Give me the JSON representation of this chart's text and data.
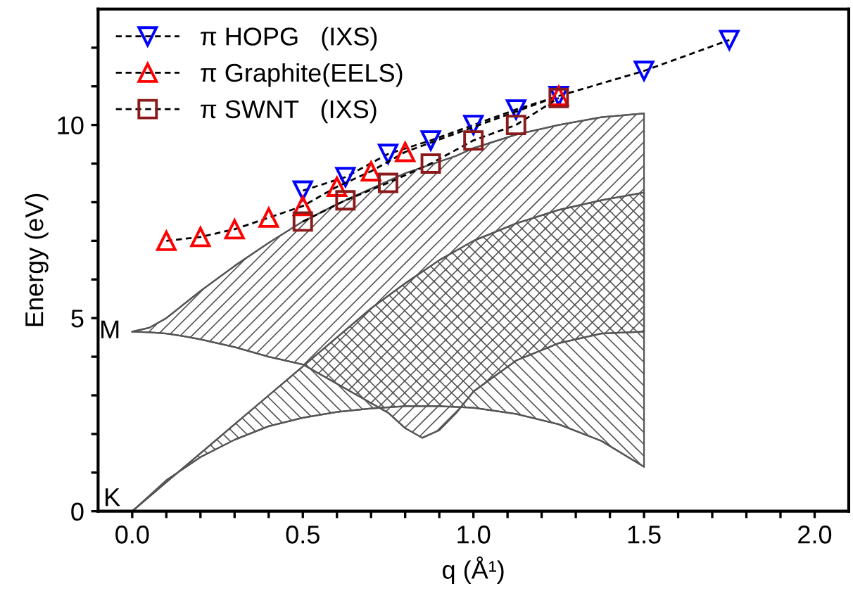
{
  "chart_data": {
    "type": "line",
    "xlabel": "q (Å¹)",
    "ylabel": "Energy (eV)",
    "xlim": [
      -0.1,
      2.1
    ],
    "ylim": [
      0,
      13
    ],
    "xticks": [
      {
        "value": 0,
        "label": "0.0"
      },
      {
        "value": 0.1,
        "label": null
      },
      {
        "value": 0.2,
        "label": null
      },
      {
        "value": 0.3,
        "label": null
      },
      {
        "value": 0.4,
        "label": null
      },
      {
        "value": 0.5,
        "label": "0.5"
      },
      {
        "value": 0.6,
        "label": null
      },
      {
        "value": 0.7,
        "label": null
      },
      {
        "value": 0.8,
        "label": null
      },
      {
        "value": 0.9,
        "label": null
      },
      {
        "value": 1,
        "label": "1.0"
      },
      {
        "value": 1.1,
        "label": null
      },
      {
        "value": 1.2,
        "label": null
      },
      {
        "value": 1.3,
        "label": null
      },
      {
        "value": 1.4,
        "label": null
      },
      {
        "value": 1.5,
        "label": "1.5"
      },
      {
        "value": 1.6,
        "label": null
      },
      {
        "value": 1.7,
        "label": null
      },
      {
        "value": 1.8,
        "label": null
      },
      {
        "value": 1.9,
        "label": null
      },
      {
        "value": 2,
        "label": "2.0"
      }
    ],
    "yticks": [
      0,
      {
        "value": 1,
        "label": null
      },
      {
        "value": 2,
        "label": null
      },
      {
        "value": 3,
        "label": null
      },
      {
        "value": 4,
        "label": null
      },
      5,
      {
        "value": 6,
        "label": null
      },
      {
        "value": 7,
        "label": null
      },
      {
        "value": 8,
        "label": null
      },
      {
        "value": 9,
        "label": null
      },
      10,
      {
        "value": 11,
        "label": null
      },
      {
        "value": 12,
        "label": null
      }
    ],
    "grid": false,
    "legend": "top left",
    "line_style": "dashed",
    "annotations": [
      {
        "text": "M",
        "x": 0,
        "y": 4.65
      },
      {
        "text": "K",
        "x": 0,
        "y": 0
      }
    ],
    "series": [
      {
        "color": "#555555",
        "line_style": "solid",
        "marker": "none",
        "x": [
          0,
          0.05,
          0.1,
          0.15,
          0.2,
          0.3,
          0.4,
          0.5,
          0.6,
          0.7,
          0.75,
          0.8,
          0.85,
          0.9,
          0.95,
          1.0,
          1.125,
          1.25,
          1.375,
          1.5
        ],
        "values": [
          4.65,
          4.75,
          5.0,
          5.35,
          5.7,
          6.35,
          6.95,
          7.5,
          7.95,
          8.35,
          8.55,
          8.75,
          8.9,
          9.05,
          9.2,
          9.4,
          9.75,
          10.0,
          10.2,
          10.3
        ]
      },
      {
        "color": "#555555",
        "line_style": "solid",
        "marker": "none",
        "x": [
          0,
          0.05,
          0.1,
          0.15,
          0.2,
          0.3,
          0.4,
          0.5,
          0.6,
          0.7,
          0.75,
          0.8,
          0.85,
          0.9,
          0.95,
          1.0,
          1.125,
          1.25,
          1.375,
          1.5
        ],
        "values": [
          4.65,
          4.63,
          4.6,
          4.53,
          4.45,
          4.25,
          4.0,
          3.8,
          3.3,
          2.8,
          2.55,
          2.15,
          1.9,
          2.1,
          2.55,
          3.1,
          3.9,
          4.35,
          4.6,
          4.65
        ]
      },
      {
        "color": "#555555",
        "line_style": "solid",
        "marker": "none",
        "x": [
          0,
          0.1,
          0.2,
          0.3,
          0.4,
          0.5,
          0.6,
          0.7,
          0.8,
          0.9,
          1.0,
          1.125,
          1.25,
          1.375,
          1.5
        ],
        "values": [
          0,
          0.75,
          1.5,
          2.25,
          3.0,
          3.75,
          4.5,
          5.25,
          5.9,
          6.5,
          7.0,
          7.45,
          7.8,
          8.05,
          8.25
        ]
      },
      {
        "color": "#555555",
        "line_style": "solid",
        "marker": "none",
        "x": [
          0,
          0.1,
          0.2,
          0.3,
          0.4,
          0.5,
          0.6,
          0.7,
          0.8,
          0.9,
          1.0,
          1.125,
          1.25,
          1.375,
          1.5
        ],
        "values": [
          0,
          0.8,
          1.4,
          1.85,
          2.2,
          2.42,
          2.57,
          2.66,
          2.72,
          2.72,
          2.68,
          2.52,
          2.25,
          1.82,
          1.15
        ]
      },
      {
        "name": "π HOPG   (IXS)",
        "color": "#0000ff",
        "marker": "triangle_down",
        "x": [
          0.5,
          0.625,
          0.75,
          0.875,
          1.0,
          1.125,
          1.25,
          1.5,
          1.75
        ],
        "values": [
          8.3,
          8.65,
          9.25,
          9.6,
          10.0,
          10.4,
          10.75,
          11.4,
          12.2
        ]
      },
      {
        "name": "π Graphite(EELS)",
        "color": "#ff0000",
        "marker": "triangle",
        "x": [
          0.1,
          0.2,
          0.3,
          0.4,
          0.5,
          0.6,
          0.7,
          0.8,
          1.25
        ],
        "values": [
          7.0,
          7.1,
          7.3,
          7.6,
          7.9,
          8.4,
          8.8,
          9.3,
          10.75
        ]
      },
      {
        "name": "π SWNT   (IXS)",
        "color": "#8b1a1a",
        "marker": "square",
        "x": [
          0.5,
          0.625,
          0.75,
          0.875,
          1.0,
          1.125,
          1.25
        ],
        "values": [
          7.5,
          8.05,
          8.5,
          9.0,
          9.6,
          10.0,
          10.7
        ]
      }
    ]
  }
}
